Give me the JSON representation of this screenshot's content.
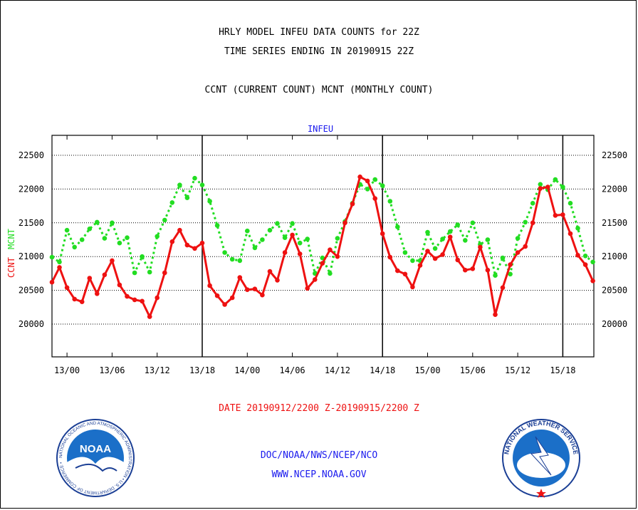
{
  "header": {
    "title_line1": "HRLY MODEL INFEU DATA COUNTS for 22Z",
    "title_line2": "TIME SERIES ENDING IN 20190915 22Z",
    "subtitle": "CCNT (CURRENT COUNT) MCNT (MONTHLY COUNT)"
  },
  "footer": {
    "date_range": "DATE 20190912/2200 Z-20190915/2200 Z",
    "org_line": "DOC/NOAA/NWS/NCEP/NCO",
    "url_line": "WWW.NCEP.NOAA.GOV"
  },
  "logos": {
    "noaa_text": "NOAA",
    "noaa_ring": "NATIONAL OCEANIC AND ATMOSPHERIC ADMINISTRATION • U.S. DEPARTMENT OF COMMERCE •",
    "nws_ring": "NATIONAL WEATHER SERVICE"
  },
  "colors": {
    "ccnt": "#ee1111",
    "mcnt": "#22dd22",
    "panel_title": "#1a1aee",
    "footer_red": "#ee1111",
    "footer_blue": "#1a1aee"
  },
  "chart_data": {
    "type": "line",
    "title": "INFEU",
    "ylabel_left": [
      "CCNT",
      "MCNT"
    ],
    "ylim": [
      19500,
      22500
    ],
    "yticks": [
      20000,
      20500,
      21000,
      21500,
      22000,
      22500
    ],
    "x_tick_labels": [
      "13/00",
      "13/06",
      "13/12",
      "13/18",
      "14/00",
      "14/06",
      "14/12",
      "14/18",
      "15/00",
      "15/06",
      "15/12",
      "15/18"
    ],
    "x_tick_hour_index": [
      2,
      8,
      14,
      20,
      26,
      32,
      38,
      44,
      50,
      56,
      62,
      68
    ],
    "day_separators_hour_index": [
      20,
      44,
      68
    ],
    "x_start": "20190912/2200 Z",
    "x_end": "20190915/2200 Z",
    "grid": true,
    "series": [
      {
        "name": "CCNT",
        "style": "solid",
        "values": [
          20620,
          20840,
          20540,
          20370,
          20330,
          20680,
          20450,
          20730,
          20940,
          20580,
          20410,
          20360,
          20340,
          20110,
          20390,
          20760,
          21220,
          21390,
          21170,
          21120,
          21200,
          20570,
          20420,
          20290,
          20390,
          20690,
          20510,
          20520,
          20430,
          20780,
          20650,
          21060,
          21320,
          21040,
          20530,
          20660,
          20900,
          21100,
          21000,
          21500,
          21780,
          22180,
          22120,
          21860,
          21340,
          20990,
          20790,
          20740,
          20550,
          20870,
          21080,
          20970,
          21030,
          21290,
          20950,
          20800,
          20820,
          21140,
          20800,
          20140,
          20540,
          20880,
          21060,
          21150,
          21500,
          22010,
          22030,
          21610,
          21620,
          21340,
          21020,
          20880,
          20640
        ]
      },
      {
        "name": "MCNT",
        "style": "dotted",
        "values": [
          20990,
          20920,
          21390,
          21140,
          21250,
          21410,
          21510,
          21270,
          21500,
          21200,
          21280,
          20760,
          21000,
          20770,
          21300,
          21540,
          21800,
          22060,
          21870,
          22160,
          22060,
          21820,
          21460,
          21060,
          20960,
          20940,
          21380,
          21130,
          21250,
          21390,
          21490,
          21280,
          21490,
          21200,
          21260,
          20750,
          20980,
          20750,
          21270,
          21520,
          21790,
          22070,
          22000,
          22140,
          22050,
          21820,
          21440,
          21060,
          20940,
          20940,
          21360,
          21120,
          21260,
          21370,
          21470,
          21240,
          21500,
          21180,
          21250,
          20720,
          20980,
          20740,
          21270,
          21510,
          21790,
          22070,
          21990,
          22140,
          22030,
          21790,
          21420,
          21010,
          20920
        ]
      }
    ]
  }
}
